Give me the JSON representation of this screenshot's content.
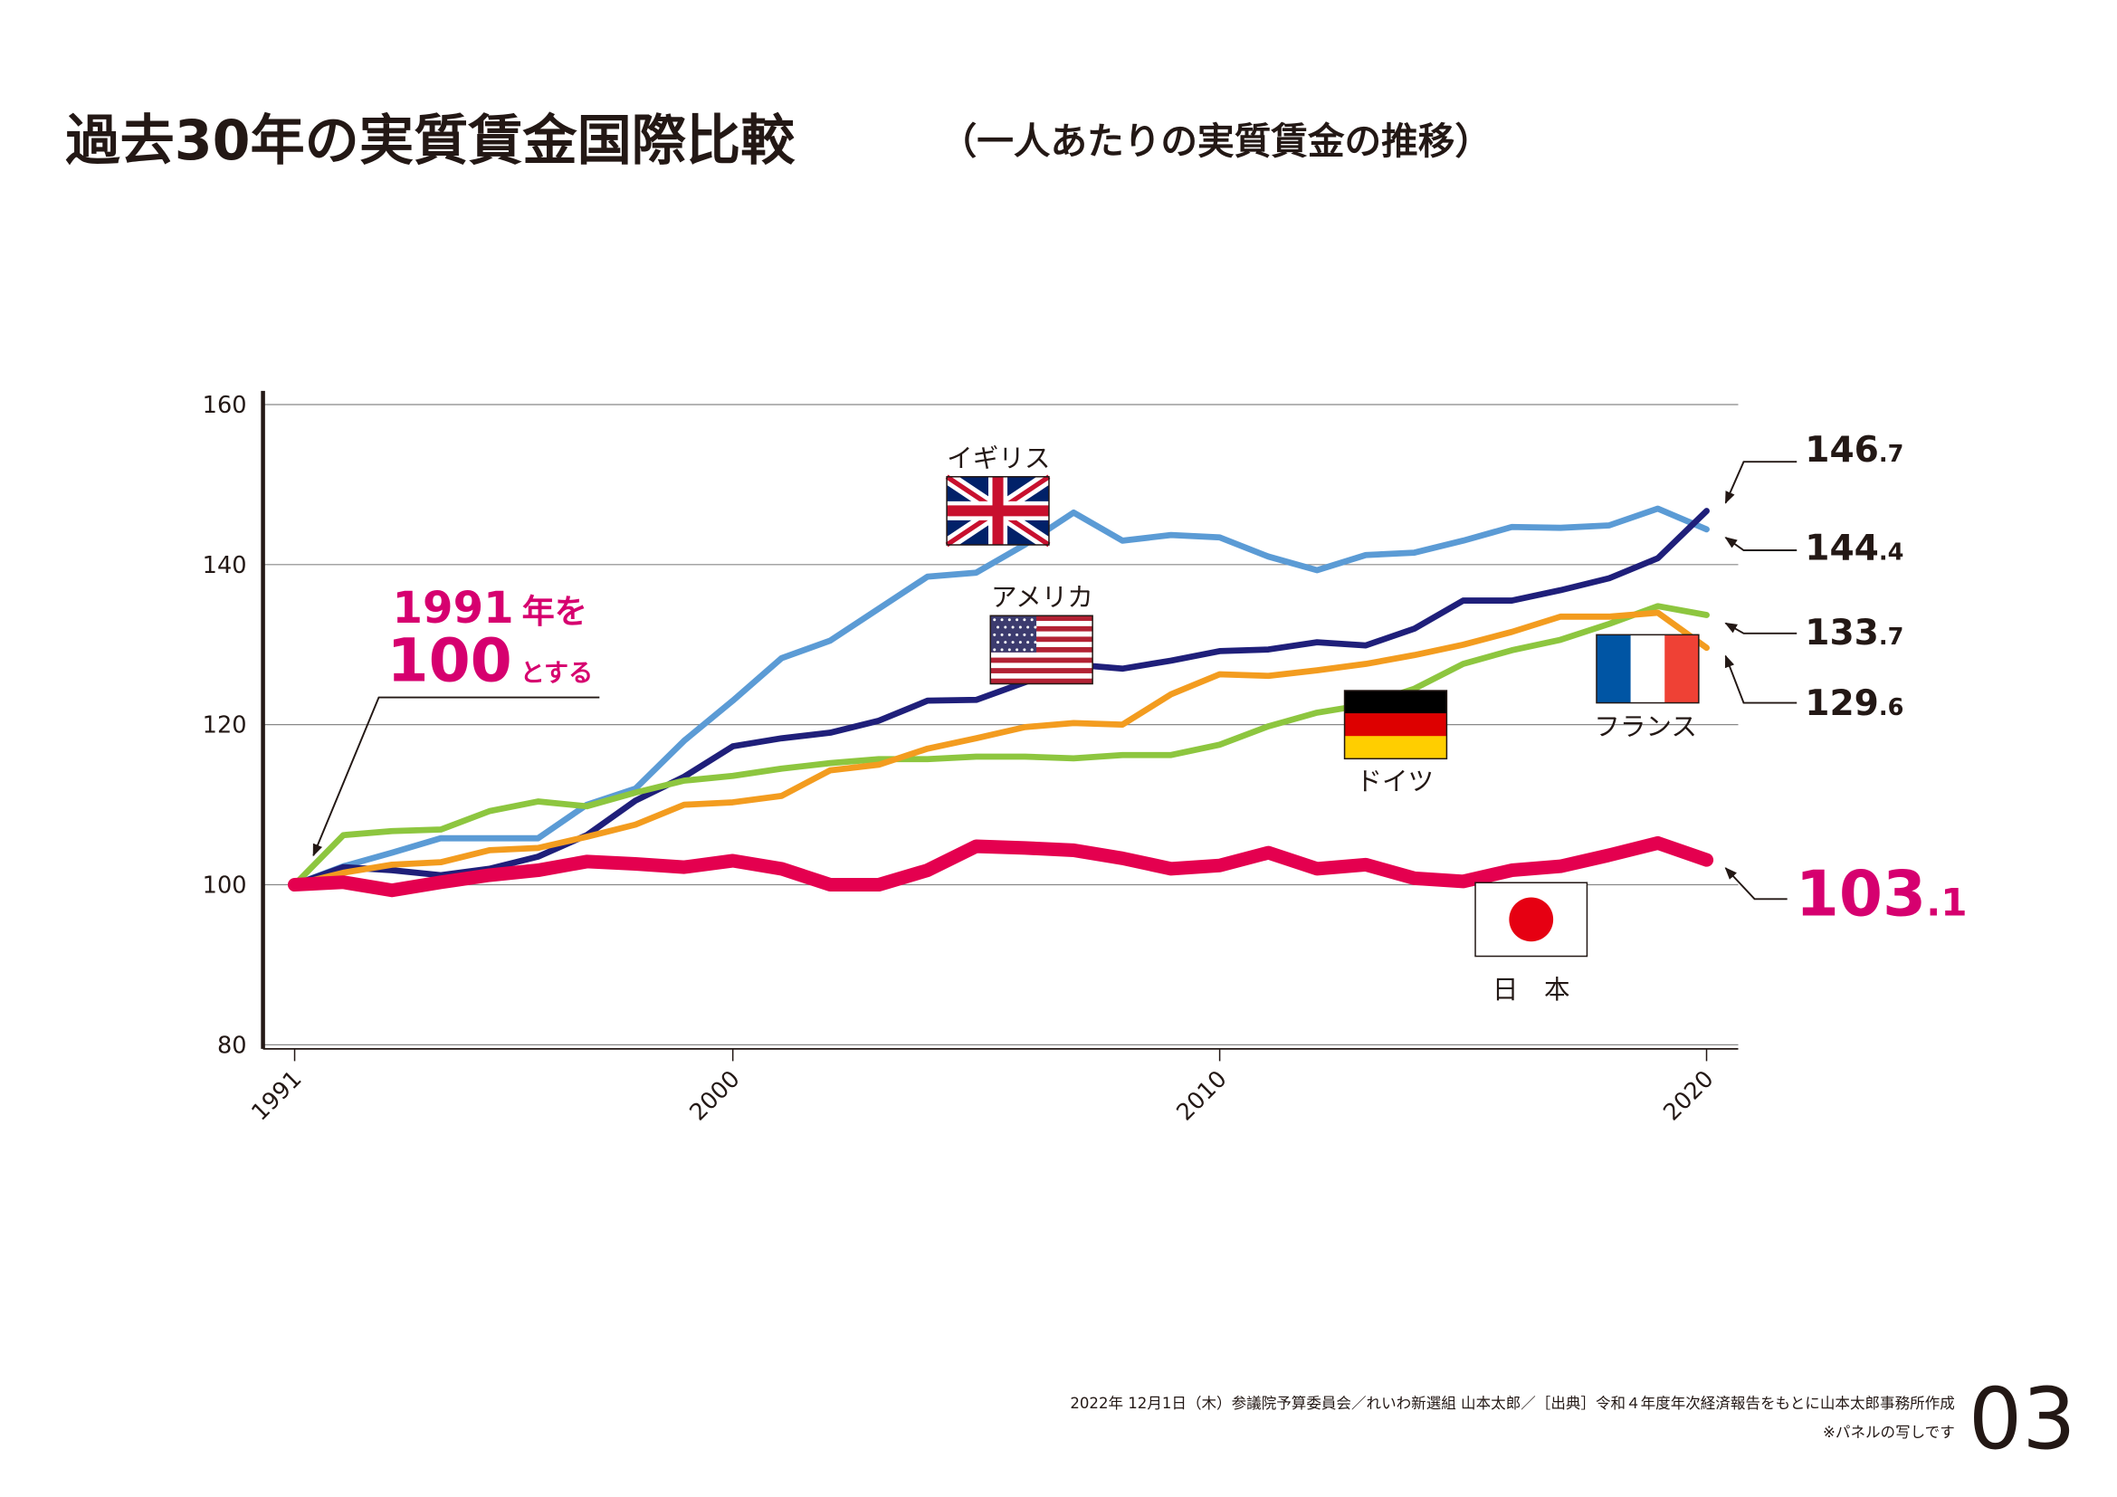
{
  "chart_data": {
    "type": "line",
    "title": "過去30年の実質賃金国際比較",
    "subtitle": "（一人あたりの実質賃金の推移）",
    "x": [
      1991,
      1992,
      1993,
      1994,
      1995,
      1996,
      1997,
      1998,
      1999,
      2000,
      2001,
      2002,
      2003,
      2004,
      2005,
      2006,
      2007,
      2008,
      2009,
      2010,
      2011,
      2012,
      2013,
      2014,
      2015,
      2016,
      2017,
      2018,
      2019,
      2020
    ],
    "xlim": [
      1990.35,
      2020.65
    ],
    "xticks": [
      1991,
      2000,
      2010,
      2020
    ],
    "ylim": [
      80,
      160
    ],
    "yticks": [
      80,
      100,
      120,
      140,
      160
    ],
    "grid": true,
    "series": [
      {
        "name": "イギリス",
        "color": "#5b9bd5",
        "end_label": "144.4",
        "values": [
          100,
          102.3,
          104,
          105.8,
          105.8,
          105.8,
          110,
          112,
          118,
          123,
          128.3,
          130.5,
          134.5,
          138.5,
          139,
          142.5,
          146.5,
          143,
          143.7,
          143.4,
          141,
          139.3,
          141.2,
          141.5,
          143,
          144.7,
          144.6,
          144.9,
          147,
          144.4
        ]
      },
      {
        "name": "アメリカ",
        "color": "#1f1f7a",
        "end_label": "146.7",
        "values": [
          100,
          102.2,
          101.8,
          101.2,
          102,
          103.5,
          106.2,
          110.5,
          113.5,
          117.3,
          118.3,
          119,
          120.5,
          123,
          123.1,
          125.3,
          127.5,
          127,
          128,
          129.2,
          129.4,
          130.3,
          129.9,
          132,
          135.5,
          135.5,
          136.8,
          138.3,
          140.8,
          146.7
        ]
      },
      {
        "name": "ドイツ",
        "color": "#8dc63f",
        "end_label": "133.7",
        "values": [
          100,
          106.2,
          106.7,
          106.9,
          109.2,
          110.4,
          109.8,
          111.5,
          113,
          113.6,
          114.5,
          115.2,
          115.7,
          115.7,
          116,
          116,
          115.8,
          116.2,
          116.2,
          117.5,
          119.8,
          121.5,
          122.5,
          124.5,
          127.6,
          129.3,
          130.6,
          132.6,
          134.8,
          133.7
        ]
      },
      {
        "name": "フランス",
        "color": "#f39c1f",
        "end_label": "129.6",
        "values": [
          100,
          101.5,
          102.5,
          102.8,
          104.3,
          104.6,
          106,
          107.5,
          110,
          110.3,
          111.1,
          114.3,
          115,
          117,
          118.3,
          119.7,
          120.2,
          120,
          123.8,
          126.3,
          126.1,
          126.8,
          127.6,
          128.7,
          130,
          131.6,
          133.5,
          133.5,
          134,
          129.6
        ]
      },
      {
        "name": "日　本",
        "color": "#e4004f",
        "end_label": "103.1",
        "values": [
          100,
          100.3,
          99.3,
          100.3,
          101.2,
          101.8,
          102.9,
          102.6,
          102.2,
          103,
          102,
          100,
          100,
          101.8,
          104.8,
          104.6,
          104.3,
          103.3,
          102,
          102.4,
          104,
          102,
          102.5,
          100.8,
          100.4,
          101.8,
          102.3,
          103.7,
          105.2,
          103.1
        ]
      }
    ],
    "annotation": [
      [
        "1991",
        "年を"
      ],
      [
        "100",
        "とする"
      ]
    ],
    "footer": "2022年 12月1日（木）参議院予算委員会／れいわ新選組 山本太郎／［出典］令和４年度年次経済報告をもとに山本太郎事務所作成",
    "footnote": "※パネルの写しです",
    "page_number": "03"
  }
}
